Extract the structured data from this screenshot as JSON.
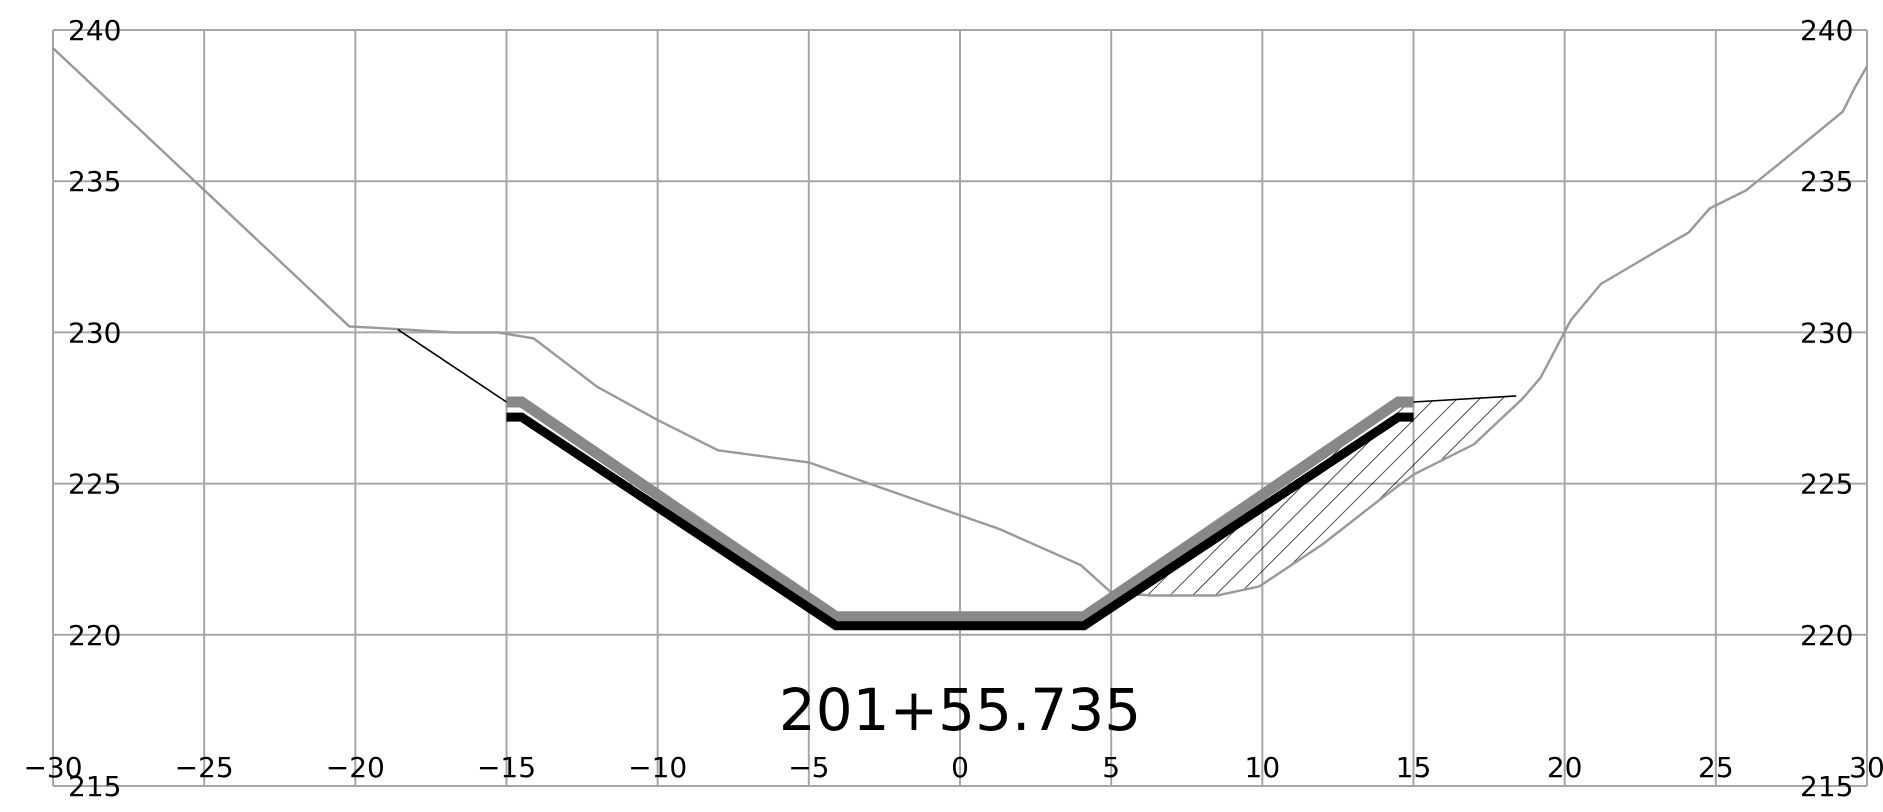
{
  "chart_data": {
    "type": "line",
    "station_label": "201+55.735",
    "xlim": [
      -30,
      30
    ],
    "ylim": [
      215,
      240
    ],
    "x_ticks": [
      -30,
      -25,
      -20,
      -15,
      -10,
      -5,
      0,
      5,
      10,
      15,
      20,
      25,
      30
    ],
    "y_ticks": [
      215,
      220,
      225,
      230,
      235,
      240
    ],
    "x_tick_labels": [
      "−30",
      "−25",
      "−20",
      "−15",
      "−10",
      "−5",
      "0",
      "5",
      "10",
      "15",
      "20",
      "25",
      "30"
    ],
    "y_tick_labels": [
      "215",
      "220",
      "225",
      "230",
      "235",
      "240"
    ],
    "grid": true,
    "series": [
      {
        "role": "existing-ground",
        "color": "#999999",
        "points": [
          [
            -30,
            239.4
          ],
          [
            -20.2,
            230.2
          ],
          [
            -18.4,
            230.1
          ],
          [
            -16.8,
            230.0
          ],
          [
            -15.3,
            230.0
          ],
          [
            -14.1,
            229.8
          ],
          [
            -12.0,
            228.2
          ],
          [
            -10.0,
            227.1
          ],
          [
            -8.0,
            226.1
          ],
          [
            -5.0,
            225.7
          ],
          [
            -3.0,
            225.0
          ],
          [
            1.3,
            223.5
          ],
          [
            4.0,
            222.3
          ],
          [
            5.0,
            221.4
          ],
          [
            6.3,
            221.3
          ],
          [
            8.0,
            221.3
          ],
          [
            8.5,
            221.3
          ],
          [
            9.9,
            221.6
          ],
          [
            12.0,
            223.0
          ],
          [
            13.8,
            224.4
          ],
          [
            15.0,
            225.3
          ],
          [
            17.0,
            226.3
          ],
          [
            18.6,
            227.8
          ],
          [
            19.2,
            228.5
          ],
          [
            20.2,
            230.4
          ],
          [
            21.2,
            231.6
          ],
          [
            23.4,
            232.9
          ],
          [
            24.1,
            233.3
          ],
          [
            24.8,
            234.1
          ],
          [
            26.0,
            234.7
          ],
          [
            27.0,
            235.5
          ],
          [
            29.2,
            237.3
          ],
          [
            29.6,
            238.1
          ],
          [
            30.0,
            238.8
          ]
        ]
      },
      {
        "role": "design-outline",
        "color": "#888888",
        "points": [
          [
            -15.0,
            227.7
          ],
          [
            -14.5,
            227.7
          ],
          [
            -4.1,
            220.6
          ],
          [
            4.1,
            220.6
          ],
          [
            14.5,
            227.7
          ],
          [
            15.0,
            227.7
          ]
        ]
      },
      {
        "role": "design-liner",
        "color": "#000000",
        "points": [
          [
            -15.0,
            227.2
          ],
          [
            -14.5,
            227.2
          ],
          [
            -4.1,
            220.3
          ],
          [
            4.1,
            220.3
          ],
          [
            14.5,
            227.2
          ],
          [
            15.0,
            227.2
          ]
        ]
      },
      {
        "role": "left-tie-line",
        "color": "#000000",
        "points": [
          [
            -18.6,
            230.1
          ],
          [
            -15.0,
            227.7
          ]
        ]
      },
      {
        "role": "right-top-line",
        "color": "#000000",
        "points": [
          [
            15.0,
            227.7
          ],
          [
            18.4,
            227.9
          ]
        ]
      }
    ],
    "hatch_region": {
      "role": "fill-area",
      "polygon": [
        [
          5.5,
          221.3
        ],
        [
          14.8,
          227.7
        ],
        [
          18.4,
          227.9
        ],
        [
          17.0,
          226.3
        ],
        [
          15.0,
          225.3
        ],
        [
          13.8,
          224.4
        ],
        [
          12.0,
          223.0
        ],
        [
          9.9,
          221.6
        ],
        [
          8.5,
          221.3
        ],
        [
          6.3,
          221.3
        ]
      ]
    }
  }
}
